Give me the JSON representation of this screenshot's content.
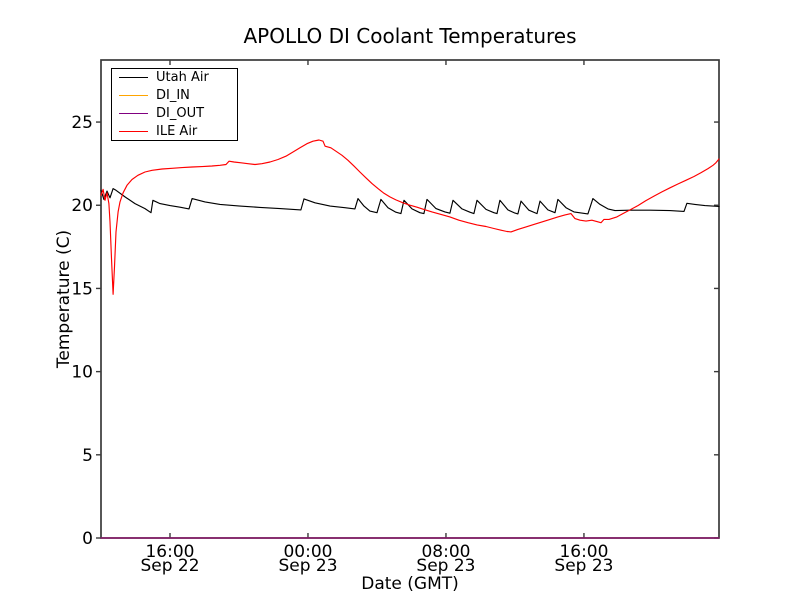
{
  "chart_data": {
    "type": "line",
    "title": "APOLLO DI Coolant Temperatures",
    "xlabel": "Date (GMT)",
    "ylabel": "Temperature (C)",
    "grid": false,
    "legend_position": "upper left",
    "x_unit_hours_since": "Sep 22 12:00 GMT",
    "xlim": [
      0,
      35.83
    ],
    "ylim": [
      0,
      28.73
    ],
    "y_ticks": [
      0,
      5,
      10,
      15,
      20,
      25
    ],
    "x_ticks": [
      {
        "hour": 4,
        "time": "16:00",
        "date": "Sep 22"
      },
      {
        "hour": 12,
        "time": "00:00",
        "date": "Sep 23"
      },
      {
        "hour": 20,
        "time": "08:00",
        "date": "Sep 23"
      },
      {
        "hour": 28,
        "time": "16:00",
        "date": "Sep 23"
      }
    ],
    "series": [
      {
        "name": "Utah Air",
        "color": "#000000",
        "points": [
          [
            0,
            20.9
          ],
          [
            0.17,
            20.35
          ],
          [
            0.35,
            20.85
          ],
          [
            0.52,
            20.45
          ],
          [
            0.7,
            21.0
          ],
          [
            0.87,
            20.9
          ],
          [
            1.39,
            20.5
          ],
          [
            1.97,
            20.1
          ],
          [
            2.55,
            19.8
          ],
          [
            2.9,
            19.55
          ],
          [
            3.01,
            20.3
          ],
          [
            3.42,
            20.1
          ],
          [
            4.0,
            19.98
          ],
          [
            4.58,
            19.88
          ],
          [
            5.1,
            19.78
          ],
          [
            5.28,
            20.4
          ],
          [
            6.03,
            20.2
          ],
          [
            6.9,
            20.05
          ],
          [
            8.06,
            19.95
          ],
          [
            9.22,
            19.87
          ],
          [
            10.38,
            19.8
          ],
          [
            11.59,
            19.72
          ],
          [
            11.77,
            20.38
          ],
          [
            12.41,
            20.15
          ],
          [
            13.28,
            19.95
          ],
          [
            14.14,
            19.85
          ],
          [
            14.72,
            19.78
          ],
          [
            14.9,
            20.4
          ],
          [
            15.25,
            19.95
          ],
          [
            15.59,
            19.65
          ],
          [
            16.0,
            19.55
          ],
          [
            16.23,
            20.35
          ],
          [
            16.64,
            19.85
          ],
          [
            17.1,
            19.58
          ],
          [
            17.39,
            19.5
          ],
          [
            17.57,
            20.3
          ],
          [
            18.03,
            19.78
          ],
          [
            18.49,
            19.55
          ],
          [
            18.72,
            19.5
          ],
          [
            18.9,
            20.35
          ],
          [
            19.42,
            19.8
          ],
          [
            19.94,
            19.6
          ],
          [
            20.23,
            19.52
          ],
          [
            20.41,
            20.3
          ],
          [
            20.93,
            19.78
          ],
          [
            21.39,
            19.58
          ],
          [
            21.62,
            19.5
          ],
          [
            21.8,
            20.3
          ],
          [
            22.32,
            19.75
          ],
          [
            22.78,
            19.55
          ],
          [
            22.96,
            19.5
          ],
          [
            23.13,
            20.3
          ],
          [
            23.59,
            19.72
          ],
          [
            24.0,
            19.53
          ],
          [
            24.17,
            19.48
          ],
          [
            24.35,
            20.25
          ],
          [
            24.81,
            19.7
          ],
          [
            25.28,
            19.5
          ],
          [
            25.45,
            20.25
          ],
          [
            25.91,
            19.72
          ],
          [
            26.32,
            19.55
          ],
          [
            26.49,
            20.35
          ],
          [
            26.96,
            19.85
          ],
          [
            27.42,
            19.6
          ],
          [
            28.23,
            19.48
          ],
          [
            28.52,
            20.4
          ],
          [
            28.93,
            20.05
          ],
          [
            29.39,
            19.78
          ],
          [
            29.8,
            19.68
          ],
          [
            30.67,
            19.7
          ],
          [
            31.83,
            19.7
          ],
          [
            32.99,
            19.68
          ],
          [
            33.8,
            19.63
          ],
          [
            33.97,
            20.12
          ],
          [
            34.43,
            20.05
          ],
          [
            35.01,
            19.98
          ],
          [
            35.83,
            19.93
          ]
        ]
      },
      {
        "name": "DI_IN",
        "color": "#ffa500",
        "points": [
          [
            0,
            0
          ],
          [
            35.83,
            0
          ]
        ]
      },
      {
        "name": "DI_OUT",
        "color": "#800080",
        "points": [
          [
            0,
            0
          ],
          [
            35.83,
            0
          ]
        ]
      },
      {
        "name": "ILE Air",
        "color": "#ff0000",
        "points": [
          [
            0,
            20.6
          ],
          [
            0.12,
            20.95
          ],
          [
            0.23,
            20.3
          ],
          [
            0.35,
            20.75
          ],
          [
            0.46,
            20.1
          ],
          [
            0.52,
            19.0
          ],
          [
            0.61,
            16.8
          ],
          [
            0.7,
            14.65
          ],
          [
            0.78,
            16.3
          ],
          [
            0.87,
            18.4
          ],
          [
            0.99,
            19.6
          ],
          [
            1.1,
            20.2
          ],
          [
            1.28,
            20.75
          ],
          [
            1.51,
            21.2
          ],
          [
            1.8,
            21.55
          ],
          [
            2.14,
            21.8
          ],
          [
            2.55,
            22.0
          ],
          [
            2.96,
            22.1
          ],
          [
            3.54,
            22.18
          ],
          [
            4.12,
            22.22
          ],
          [
            4.7,
            22.26
          ],
          [
            5.28,
            22.3
          ],
          [
            5.86,
            22.32
          ],
          [
            6.43,
            22.36
          ],
          [
            6.9,
            22.4
          ],
          [
            7.25,
            22.45
          ],
          [
            7.42,
            22.65
          ],
          [
            7.71,
            22.6
          ],
          [
            8.12,
            22.55
          ],
          [
            8.52,
            22.5
          ],
          [
            8.93,
            22.45
          ],
          [
            9.33,
            22.5
          ],
          [
            9.8,
            22.6
          ],
          [
            10.26,
            22.75
          ],
          [
            10.72,
            22.95
          ],
          [
            11.13,
            23.2
          ],
          [
            11.54,
            23.45
          ],
          [
            11.94,
            23.7
          ],
          [
            12.29,
            23.85
          ],
          [
            12.64,
            23.92
          ],
          [
            12.87,
            23.85
          ],
          [
            12.99,
            23.55
          ],
          [
            13.33,
            23.45
          ],
          [
            13.62,
            23.25
          ],
          [
            13.97,
            23.0
          ],
          [
            14.32,
            22.7
          ],
          [
            14.67,
            22.35
          ],
          [
            15.01,
            22.0
          ],
          [
            15.36,
            21.65
          ],
          [
            15.71,
            21.3
          ],
          [
            16.06,
            21.0
          ],
          [
            16.41,
            20.72
          ],
          [
            16.75,
            20.5
          ],
          [
            17.1,
            20.32
          ],
          [
            17.51,
            20.15
          ],
          [
            17.91,
            20.0
          ],
          [
            18.32,
            19.88
          ],
          [
            18.72,
            19.75
          ],
          [
            19.19,
            19.6
          ],
          [
            19.71,
            19.45
          ],
          [
            20.23,
            19.3
          ],
          [
            20.75,
            19.1
          ],
          [
            21.28,
            18.95
          ],
          [
            21.8,
            18.82
          ],
          [
            22.32,
            18.72
          ],
          [
            22.78,
            18.6
          ],
          [
            23.19,
            18.5
          ],
          [
            23.54,
            18.42
          ],
          [
            23.77,
            18.4
          ],
          [
            24.17,
            18.55
          ],
          [
            24.64,
            18.7
          ],
          [
            25.1,
            18.85
          ],
          [
            25.57,
            19.0
          ],
          [
            26.03,
            19.15
          ],
          [
            26.49,
            19.3
          ],
          [
            26.9,
            19.42
          ],
          [
            27.25,
            19.5
          ],
          [
            27.48,
            19.2
          ],
          [
            27.77,
            19.1
          ],
          [
            28.12,
            19.05
          ],
          [
            28.46,
            19.1
          ],
          [
            28.75,
            19.02
          ],
          [
            28.99,
            18.95
          ],
          [
            29.16,
            19.15
          ],
          [
            29.45,
            19.15
          ],
          [
            29.68,
            19.22
          ],
          [
            29.91,
            19.3
          ],
          [
            30.26,
            19.5
          ],
          [
            30.67,
            19.72
          ],
          [
            31.13,
            19.98
          ],
          [
            31.59,
            20.28
          ],
          [
            32.06,
            20.55
          ],
          [
            32.52,
            20.8
          ],
          [
            32.99,
            21.05
          ],
          [
            33.45,
            21.28
          ],
          [
            33.91,
            21.5
          ],
          [
            34.38,
            21.73
          ],
          [
            34.78,
            21.95
          ],
          [
            35.19,
            22.2
          ],
          [
            35.48,
            22.4
          ],
          [
            35.65,
            22.55
          ],
          [
            35.83,
            22.78
          ]
        ]
      }
    ]
  },
  "style": {
    "spine_color": "#3a3a3a",
    "background": "#ffffff"
  }
}
